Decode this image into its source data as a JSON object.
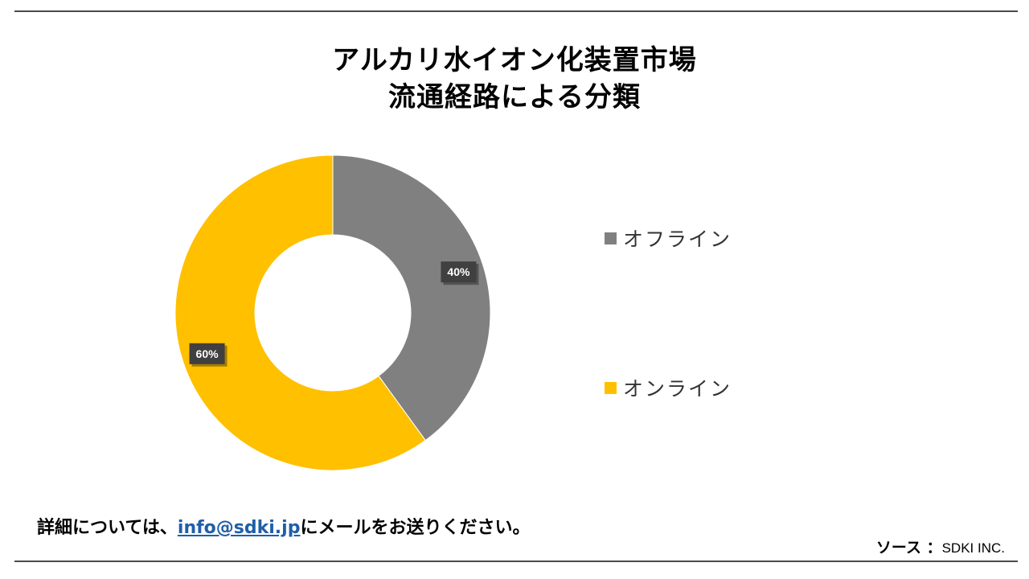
{
  "title": {
    "line1": "アルカリ水イオン化装置市場",
    "line2": "流通経路による分類"
  },
  "chart_data": {
    "type": "pie",
    "variant": "donut",
    "start_angle_deg": 0,
    "direction": "clockwise",
    "slices": [
      {
        "label": "オフライン",
        "value": 40,
        "display": "40%",
        "color": "#808080"
      },
      {
        "label": "オンライン",
        "value": 60,
        "display": "60%",
        "color": "#FFC000"
      }
    ],
    "legend_position": "right"
  },
  "footer": {
    "contact_prefix": "詳細については、",
    "contact_link": "info@sdki.jp",
    "contact_suffix": "にメールをお送りください。",
    "source_label": "ソース ：",
    "source_value": "SDKI INC."
  },
  "colors": {
    "rule": "#4a4a4a",
    "link": "#1f5fa8",
    "label_box": "#404040"
  }
}
